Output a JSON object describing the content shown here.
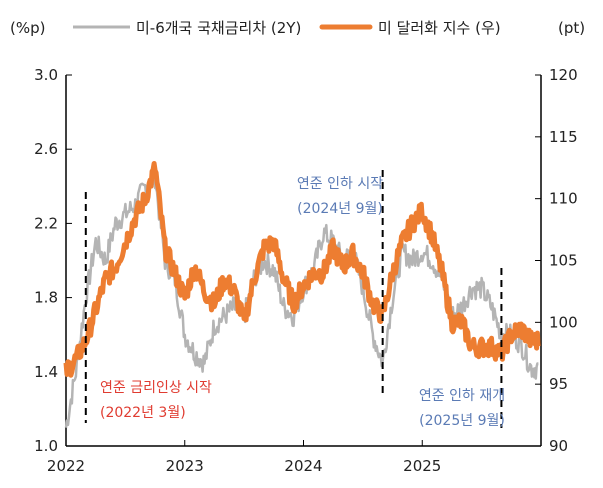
{
  "chart_data": {
    "type": "line",
    "left_unit": "(%p)",
    "right_unit": "(pt)",
    "x": [
      "2022-01",
      "2022-02",
      "2022-03",
      "2022-04",
      "2022-05",
      "2022-06",
      "2022-07",
      "2022-08",
      "2022-09",
      "2022-10",
      "2022-11",
      "2022-12",
      "2023-01",
      "2023-02",
      "2023-03",
      "2023-04",
      "2023-05",
      "2023-06",
      "2023-07",
      "2023-08",
      "2023-09",
      "2023-10",
      "2023-11",
      "2023-12",
      "2024-01",
      "2024-02",
      "2024-03",
      "2024-04",
      "2024-05",
      "2024-06",
      "2024-07",
      "2024-08",
      "2024-09",
      "2024-10",
      "2024-11",
      "2024-12",
      "2025-01",
      "2025-02",
      "2025-03",
      "2025-04",
      "2025-05",
      "2025-06",
      "2025-07",
      "2025-08",
      "2025-09",
      "2025-10",
      "2025-11",
      "2025-12"
    ],
    "series": [
      {
        "name": "미-6개국 국채금리차 (2Y)",
        "axis": "left",
        "color": "#b4b4b4",
        "values": [
          1.1,
          1.4,
          1.8,
          2.1,
          2.0,
          2.2,
          2.25,
          2.3,
          2.4,
          2.45,
          2.0,
          1.9,
          1.6,
          1.5,
          1.45,
          1.65,
          1.7,
          1.75,
          1.7,
          1.9,
          2.0,
          1.95,
          1.75,
          1.7,
          1.85,
          1.95,
          2.15,
          2.1,
          2.0,
          2.05,
          1.85,
          1.6,
          1.45,
          1.8,
          2.05,
          2.0,
          2.05,
          2.0,
          1.9,
          1.7,
          1.75,
          1.85,
          1.85,
          1.75,
          1.6,
          1.6,
          1.55,
          1.42
        ]
      },
      {
        "name": "미 달러화 지수 (우)",
        "axis": "right",
        "color": "#ed7d31",
        "values": [
          96,
          97,
          98.5,
          101,
          103.5,
          104.5,
          106.5,
          108.5,
          110,
          112.5,
          106,
          104,
          102,
          104.5,
          102.5,
          101.5,
          103.5,
          102.5,
          100,
          103.5,
          106,
          106.5,
          103.5,
          101.5,
          103,
          104,
          104,
          106,
          104.5,
          105.5,
          104,
          101.5,
          100.5,
          104,
          106.5,
          108,
          109,
          107,
          104,
          100,
          100,
          98,
          98,
          98,
          97.5,
          99,
          99.5,
          98.5
        ]
      }
    ],
    "y_left": {
      "range": [
        1.0,
        3.0
      ],
      "ticks": [
        "1.0",
        "1.4",
        "1.8",
        "2.2",
        "2.6",
        "3.0"
      ]
    },
    "y_right": {
      "range": [
        90,
        120
      ],
      "ticks": [
        "90",
        "95",
        "100",
        "105",
        "110",
        "115",
        "120"
      ]
    },
    "x_ticks": [
      "2022",
      "2023",
      "2024",
      "2025"
    ],
    "x_range": [
      "2022-01",
      "2026-01"
    ],
    "legend_position": "top",
    "grid": false,
    "annotations": [
      {
        "date": "2022-03",
        "line1": "연준 금리인상 시작",
        "line2": "(2022년 3월)",
        "color": "#e03c31"
      },
      {
        "date": "2024-09",
        "line1": "연준 인하 시작",
        "line2": "(2024년 9월)",
        "color": "#5b7bb5"
      },
      {
        "date": "2025-09",
        "line1": "연준 인하 재개",
        "line2": "(2025년 9월)",
        "color": "#5b7bb5"
      }
    ]
  }
}
